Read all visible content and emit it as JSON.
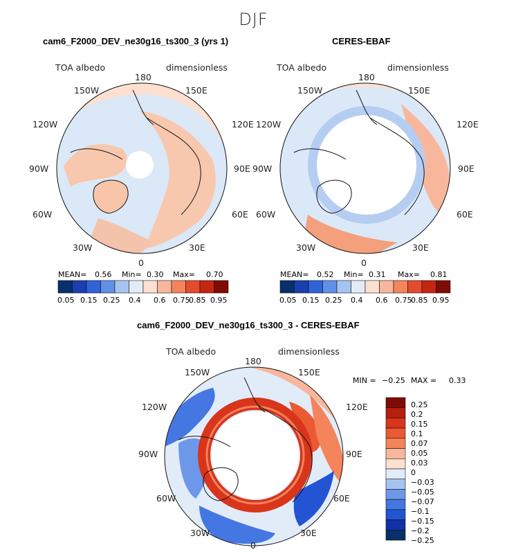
{
  "figure": {
    "season": "DJF",
    "colors": {
      "scale11": [
        "#08306b",
        "#1b3fb0",
        "#2f63d8",
        "#6090e6",
        "#a6c4f0",
        "#e2ecf9",
        "#fde0d0",
        "#f8b79c",
        "#f4845c",
        "#e44b2c",
        "#c42611",
        "#7f0c04"
      ],
      "scale13": [
        "#08306b",
        "#1330a8",
        "#2254d4",
        "#4477e2",
        "#6d98ea",
        "#a6c4f0",
        "#e2ecf9",
        "#fde0d0",
        "#f8b79c",
        "#f4845c",
        "#ec5a33",
        "#d8351b",
        "#b51f0d",
        "#7f0c04"
      ],
      "ocean": "#dbe8f8",
      "land": "#f7c8ae"
    }
  },
  "panels": [
    {
      "title": "cam6_F2000_DEV_ne30g16_ts300_3 (yrs 1)",
      "variable": "TOA albedo",
      "units": "dimensionless",
      "stats": {
        "mean_label": "MEAN=",
        "mean": "0.56",
        "min_label": "Min=",
        "min": "0.30",
        "max_label": "Max=",
        "max": "0.70"
      },
      "colorbar_labels": [
        "0.05",
        "0.15",
        "0.25",
        "0.4",
        "0.6",
        "0.75",
        "0.85",
        "0.95"
      ],
      "lon_labels": {
        "top": "180",
        "bottom": "0",
        "ul": "150W",
        "ur": "150E",
        "ml1": "120W",
        "mr1": "120E",
        "ml2": "90W",
        "mr2": "90E",
        "ll1": "60W",
        "lr1": "60E",
        "ll2": "30W",
        "lr2": "30E"
      }
    },
    {
      "title": "CERES-EBAF",
      "variable": "TOA albedo",
      "units": "dimensionless",
      "stats": {
        "mean_label": "MEAN=",
        "mean": "0.52",
        "min_label": "Min=",
        "min": "0.31",
        "max_label": "Max=",
        "max": "0.81"
      },
      "colorbar_labels": [
        "0.05",
        "0.15",
        "0.25",
        "0.4",
        "0.6",
        "0.75",
        "0.85",
        "0.95"
      ],
      "lon_labels": {
        "top": "180",
        "bottom": "0",
        "ul": "150W",
        "ur": "150E",
        "ml1": "120W",
        "mr1": "120E",
        "ml2": "90W",
        "mr2": "90E",
        "ll1": "60W",
        "lr1": "60E",
        "ll2": "30W",
        "lr2": "30E"
      }
    },
    {
      "title": "cam6_F2000_DEV_ne30g16_ts300_3 - CERES-EBAF",
      "variable": "TOA albedo",
      "units": "dimensionless",
      "stats": {
        "min_label": "MIN =",
        "min": "−0.25",
        "max_label": "MAX =",
        "max": "0.33"
      },
      "colorbar_labels": [
        "0.25",
        "0.2",
        "0.15",
        "0.1",
        "0.07",
        "0.05",
        "0.03",
        "0",
        "−0.03",
        "−0.05",
        "−0.07",
        "−0.1",
        "−0.15",
        "−0.2",
        "−0.25"
      ],
      "lon_labels": {
        "top": "180",
        "bottom": "0",
        "ul": "150W",
        "ur": "150E",
        "ml1": "120W",
        "mr1": "120E",
        "ml2": "90W",
        "mr2": "90E",
        "ll1": "60W",
        "lr1": "60E",
        "ll2": "30W",
        "lr2": "30E"
      }
    }
  ],
  "chart_data": [
    {
      "type": "heatmap",
      "projection": "north polar stereographic",
      "title": "cam6_F2000_DEV_ne30g16_ts300_3 (yrs 1)",
      "field": "TOA albedo",
      "units": "dimensionless",
      "levels": [
        0.05,
        0.1,
        0.15,
        0.2,
        0.25,
        0.3,
        0.4,
        0.5,
        0.6,
        0.7,
        0.75,
        0.8,
        0.85,
        0.9,
        0.95
      ],
      "mean": 0.56,
      "min": 0.3,
      "max": 0.7
    },
    {
      "type": "heatmap",
      "projection": "north polar stereographic",
      "title": "CERES-EBAF",
      "field": "TOA albedo",
      "units": "dimensionless",
      "levels": [
        0.05,
        0.1,
        0.15,
        0.2,
        0.25,
        0.3,
        0.4,
        0.5,
        0.6,
        0.7,
        0.75,
        0.8,
        0.85,
        0.9,
        0.95
      ],
      "mean": 0.52,
      "min": 0.31,
      "max": 0.81
    },
    {
      "type": "heatmap",
      "projection": "north polar stereographic",
      "title": "cam6_F2000_DEV_ne30g16_ts300_3 - CERES-EBAF",
      "field": "TOA albedo",
      "units": "dimensionless",
      "levels": [
        -0.25,
        -0.2,
        -0.15,
        -0.1,
        -0.07,
        -0.05,
        -0.03,
        0,
        0.03,
        0.05,
        0.07,
        0.1,
        0.15,
        0.2,
        0.25
      ],
      "min": -0.25,
      "max": 0.33
    }
  ]
}
